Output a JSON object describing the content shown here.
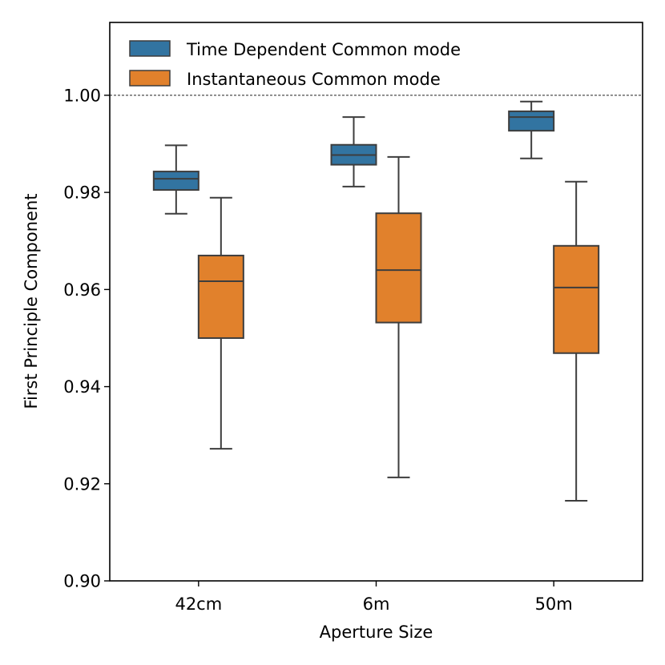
{
  "chart_data": {
    "type": "box",
    "title": "",
    "xlabel": "Aperture Size",
    "ylabel": "First Principle Component",
    "categories": [
      "42cm",
      "6m",
      "50m"
    ],
    "ylim": [
      0.9,
      1.015
    ],
    "yticks": [
      0.9,
      0.92,
      0.94,
      0.96,
      0.98,
      1.0
    ],
    "ytick_labels": [
      "0.90",
      "0.92",
      "0.94",
      "0.96",
      "0.98",
      "1.00"
    ],
    "reference_line": 1.0,
    "legend_position": "top-left",
    "series": [
      {
        "name": "Time Dependent Common mode",
        "color": "#3274a1",
        "boxes": [
          {
            "whisker_low": 0.9756,
            "q1": 0.9805,
            "median": 0.9828,
            "q3": 0.9843,
            "whisker_high": 0.9897
          },
          {
            "whisker_low": 0.9812,
            "q1": 0.9857,
            "median": 0.9877,
            "q3": 0.9898,
            "whisker_high": 0.9955
          },
          {
            "whisker_low": 0.987,
            "q1": 0.9927,
            "median": 0.9955,
            "q3": 0.9967,
            "whisker_high": 0.9987
          }
        ]
      },
      {
        "name": "Instantaneous Common mode",
        "color": "#e1812c",
        "boxes": [
          {
            "whisker_low": 0.9272,
            "q1": 0.95,
            "median": 0.9617,
            "q3": 0.967,
            "whisker_high": 0.9789
          },
          {
            "whisker_low": 0.9213,
            "q1": 0.9532,
            "median": 0.964,
            "q3": 0.9757,
            "whisker_high": 0.9873
          },
          {
            "whisker_low": 0.9165,
            "q1": 0.9469,
            "median": 0.9604,
            "q3": 0.969,
            "whisker_high": 0.9822
          }
        ]
      }
    ]
  }
}
